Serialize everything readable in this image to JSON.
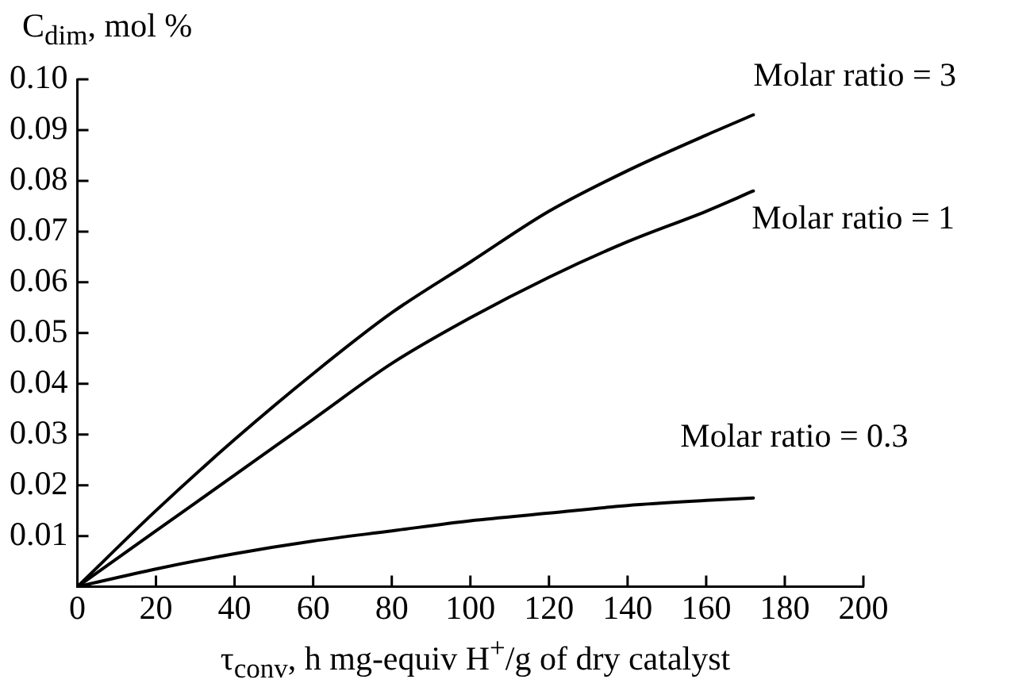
{
  "chart_data": {
    "type": "line",
    "xlabel": "τ$_{conv}$, h mg-equiv H$^{+}$/g of dry catalyst",
    "ylabel": "C$_{dim}$, mol %",
    "x": [
      0,
      20,
      40,
      60,
      80,
      100,
      120,
      140,
      160,
      172
    ],
    "series": [
      {
        "name": "Molar ratio = 3",
        "color": "#000000",
        "values": [
          0,
          0.015,
          0.029,
          0.042,
          0.054,
          0.064,
          0.074,
          0.082,
          0.089,
          0.093
        ]
      },
      {
        "name": "Molar ratio = 1",
        "color": "#000000",
        "values": [
          0,
          0.011,
          0.022,
          0.033,
          0.044,
          0.053,
          0.061,
          0.068,
          0.074,
          0.078
        ]
      },
      {
        "name": "Molar ratio = 0.3",
        "color": "#000000",
        "values": [
          0,
          0.0035,
          0.0065,
          0.009,
          0.011,
          0.013,
          0.0145,
          0.016,
          0.017,
          0.0175
        ]
      }
    ],
    "xlim": [
      0,
      200
    ],
    "xticks": [
      0,
      20,
      40,
      60,
      80,
      100,
      120,
      140,
      160,
      180,
      200
    ],
    "ylim": [
      0,
      0.1
    ],
    "yticks": [
      {
        "value": 0,
        "label": null
      },
      {
        "value": 0.01,
        "label": "0.01"
      },
      {
        "value": 0.02,
        "label": "0.02"
      },
      {
        "value": 0.03,
        "label": "0.03"
      },
      {
        "value": 0.04,
        "label": "0.04"
      },
      {
        "value": 0.05,
        "label": "0.05"
      },
      {
        "value": 0.06,
        "label": "0.06"
      },
      {
        "value": 0.07,
        "label": "0.07"
      },
      {
        "value": 0.08,
        "label": "0.08"
      },
      {
        "value": 0.09,
        "label": "0.09"
      },
      {
        "value": 0.1,
        "label": "0.10"
      }
    ],
    "grid": false,
    "legend": false,
    "marker": "none",
    "line_style": "solid"
  }
}
